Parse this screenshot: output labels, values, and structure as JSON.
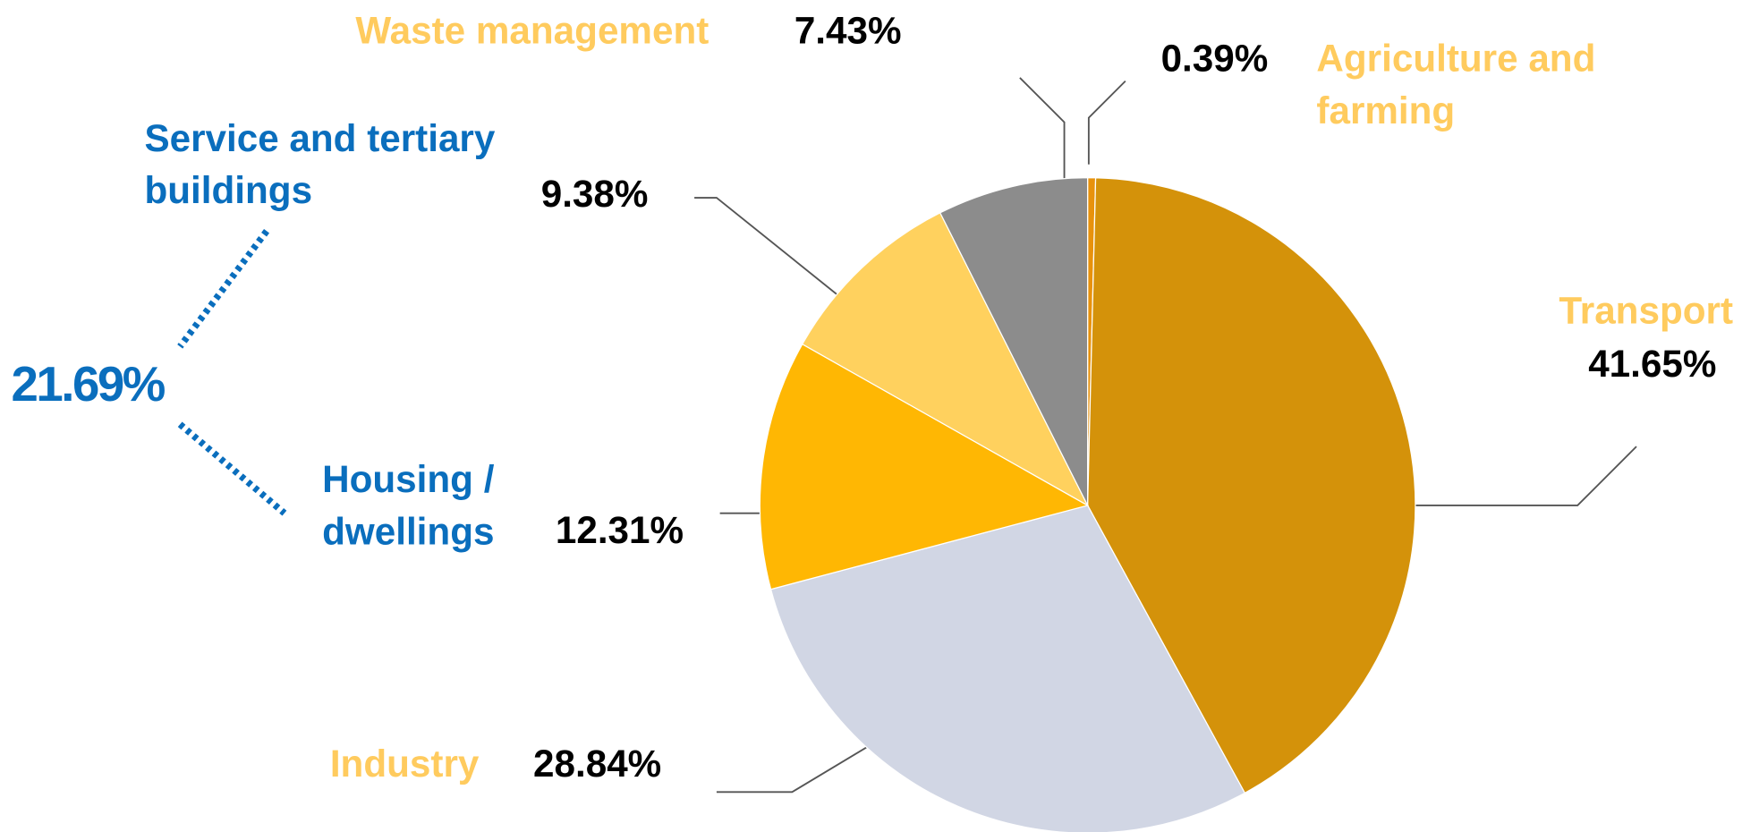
{
  "chart_data": {
    "type": "pie",
    "categories": [
      "Agriculture and farming",
      "Transport",
      "Industry",
      "Housing / dwellings",
      "Service and tertiary buildings",
      "Waste management"
    ],
    "values": [
      0.39,
      41.65,
      28.84,
      12.31,
      9.38,
      7.43
    ],
    "value_labels": [
      "0.39%",
      "41.65%",
      "28.84%",
      "12.31%",
      "9.38%",
      "7.43%"
    ],
    "colors": [
      "#E8920C",
      "#D4920A",
      "#D1D6E4",
      "#FFB703",
      "#FFD15E",
      "#8C8C8C"
    ],
    "label_colors": [
      "#FFCB5E",
      "#FFCB5E",
      "#FFCB5E",
      "#0A6EBD",
      "#0A6EBD",
      "#FFCB5E"
    ],
    "annotation": "21.69%"
  }
}
